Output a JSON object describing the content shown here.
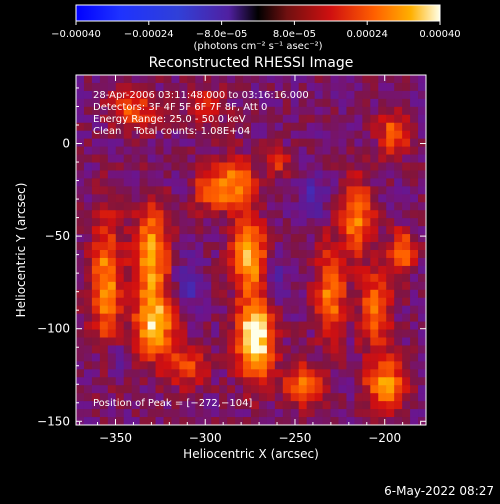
{
  "chart_data": {
    "type": "heatmap",
    "title": "Reconstructed RHESSI Image",
    "xlabel": "Heliocentric X (arcsec)",
    "ylabel": "Heliocentric Y (arcsec)",
    "xlim": [
      -372,
      -177
    ],
    "ylim": [
      -152,
      37
    ],
    "x_ticks": [
      -350,
      -300,
      -250,
      -200
    ],
    "y_ticks": [
      0,
      -50,
      -100,
      -150
    ],
    "colorbar": {
      "label": "(photons cm⁻² s⁻¹ asec⁻²)",
      "range": [
        -0.0004,
        0.0004
      ],
      "tick_values": [
        -0.0004,
        -0.00024,
        -8e-05,
        8e-05,
        0.00024,
        0.0004
      ],
      "tick_labels": [
        "−0.00040",
        "−0.00024",
        "−8.0e−05",
        "8.0e−05",
        "0.00024",
        "0.00040"
      ]
    },
    "annotations": [
      "28-Apr-2006 03:11:48.000 to 03:16:16.000",
      "Detectors: 3F 4F 5F 6F 7F 8F, Att 0",
      "Energy Range: 25.0 - 50.0 keV",
      "Clean    Total counts: 1.08E+04"
    ],
    "peak_label": "Position of Peak = [−272,−104]",
    "peak": [
      -272,
      -104
    ],
    "sources": [
      {
        "x": -272,
        "y": -104,
        "sx": 7,
        "sy": 16,
        "amp": 0.00042
      },
      {
        "x": -276,
        "y": -60,
        "sx": 7,
        "sy": 12,
        "amp": 0.00032
      },
      {
        "x": -283,
        "y": -22,
        "sx": 8,
        "sy": 10,
        "amp": 0.00026
      },
      {
        "x": -298,
        "y": -25,
        "sx": 6,
        "sy": 8,
        "amp": 0.00018
      },
      {
        "x": -330,
        "y": -62,
        "sx": 7,
        "sy": 20,
        "amp": 0.0003
      },
      {
        "x": -328,
        "y": -100,
        "sx": 8,
        "sy": 12,
        "amp": 0.00028
      },
      {
        "x": -355,
        "y": -75,
        "sx": 6,
        "sy": 25,
        "amp": 0.00026
      },
      {
        "x": -310,
        "y": -120,
        "sx": 8,
        "sy": 8,
        "amp": 0.00018
      },
      {
        "x": -245,
        "y": -130,
        "sx": 8,
        "sy": 8,
        "amp": 0.00022
      },
      {
        "x": -230,
        "y": -80,
        "sx": 6,
        "sy": 18,
        "amp": 0.00024
      },
      {
        "x": -215,
        "y": -40,
        "sx": 6,
        "sy": 14,
        "amp": 0.00026
      },
      {
        "x": -205,
        "y": -90,
        "sx": 6,
        "sy": 14,
        "amp": 0.00024
      },
      {
        "x": -200,
        "y": -130,
        "sx": 8,
        "sy": 10,
        "amp": 0.00026
      },
      {
        "x": -190,
        "y": -58,
        "sx": 5,
        "sy": 8,
        "amp": 0.00024
      },
      {
        "x": -195,
        "y": 5,
        "sx": 6,
        "sy": 8,
        "amp": 0.00022
      },
      {
        "x": -340,
        "y": 18,
        "sx": 10,
        "sy": 8,
        "amp": 0.00018
      },
      {
        "x": -300,
        "y": 20,
        "sx": 8,
        "sy": 6,
        "amp": 0.00016
      },
      {
        "x": -260,
        "y": -10,
        "sx": 5,
        "sy": 6,
        "amp": 0.00014
      },
      {
        "x": -262,
        "y": -75,
        "sx": 5,
        "sy": 10,
        "amp": -0.00012
      },
      {
        "x": -310,
        "y": -75,
        "sx": 5,
        "sy": 8,
        "amp": -0.00015
      },
      {
        "x": -240,
        "y": -30,
        "sx": 5,
        "sy": 8,
        "amp": -0.00012
      },
      {
        "x": -350,
        "y": -115,
        "sx": 6,
        "sy": 6,
        "amp": -0.0001
      }
    ]
  },
  "footer": {
    "timestamp": "6-May-2022 08:27"
  }
}
